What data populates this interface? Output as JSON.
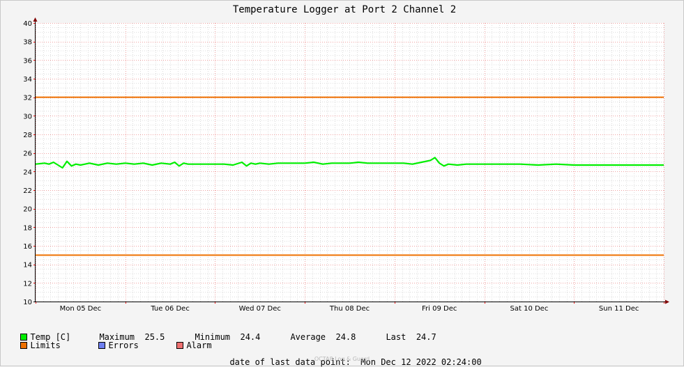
{
  "chart_data": {
    "type": "line",
    "title": "Temperature Logger at Port 2 Channel 2",
    "ylim": [
      10,
      40
    ],
    "y_ticks": [
      10,
      12,
      14,
      16,
      18,
      20,
      22,
      24,
      26,
      28,
      30,
      32,
      34,
      36,
      38,
      40
    ],
    "x_labels": [
      "Mon 05 Dec",
      "Tue 06 Dec",
      "Wed 07 Dec",
      "Thu 08 Dec",
      "Fri 09 Dec",
      "Sat 10 Dec",
      "Sun 11 Dec"
    ],
    "x_days": [
      5,
      12
    ],
    "grid": true,
    "series": [
      {
        "name": "Temp [C]",
        "color": "#00ee00",
        "x": [
          5.0,
          5.1,
          5.15,
          5.2,
          5.25,
          5.3,
          5.35,
          5.4,
          5.45,
          5.5,
          5.55,
          5.6,
          5.7,
          5.8,
          5.9,
          6.0,
          6.1,
          6.2,
          6.3,
          6.4,
          6.5,
          6.55,
          6.6,
          6.65,
          6.7,
          6.8,
          6.9,
          7.0,
          7.1,
          7.2,
          7.3,
          7.35,
          7.4,
          7.45,
          7.5,
          7.6,
          7.7,
          7.8,
          7.9,
          8.0,
          8.1,
          8.15,
          8.2,
          8.3,
          8.4,
          8.5,
          8.6,
          8.7,
          8.8,
          8.9,
          9.0,
          9.1,
          9.2,
          9.3,
          9.4,
          9.45,
          9.5,
          9.55,
          9.6,
          9.7,
          9.8,
          9.9,
          10.0,
          10.2,
          10.4,
          10.6,
          10.8,
          11.0,
          11.2,
          11.4,
          11.6,
          11.8,
          12.0
        ],
        "values": [
          24.8,
          24.9,
          24.8,
          25.0,
          24.7,
          24.4,
          25.1,
          24.6,
          24.8,
          24.7,
          24.8,
          24.9,
          24.7,
          24.9,
          24.8,
          24.9,
          24.8,
          24.9,
          24.7,
          24.9,
          24.8,
          25.0,
          24.6,
          24.9,
          24.8,
          24.8,
          24.8,
          24.8,
          24.8,
          24.7,
          25.0,
          24.6,
          24.9,
          24.8,
          24.9,
          24.8,
          24.9,
          24.9,
          24.9,
          24.9,
          25.0,
          24.9,
          24.8,
          24.9,
          24.9,
          24.9,
          25.0,
          24.9,
          24.9,
          24.9,
          24.9,
          24.9,
          24.8,
          25.0,
          25.2,
          25.5,
          24.9,
          24.6,
          24.8,
          24.7,
          24.8,
          24.8,
          24.8,
          24.8,
          24.8,
          24.7,
          24.8,
          24.7,
          24.7,
          24.7,
          24.7,
          24.7,
          24.7
        ]
      },
      {
        "name": "Limits",
        "color": "#ee7000",
        "values": [
          32,
          15
        ]
      },
      {
        "name": "Errors",
        "color": "#6e7ff0",
        "values": []
      },
      {
        "name": "Alarm",
        "color": "#ee7070",
        "values": []
      }
    ]
  },
  "legend": {
    "temp_label": "Temp [C]",
    "maximum_label": "Maximum",
    "maximum_value": "25.5",
    "minimum_label": "Minimum",
    "minimum_value": "24.4",
    "average_label": "Average",
    "average_value": "24.8",
    "last_label": "Last",
    "last_value": "24.7",
    "limits_label": "Limits",
    "errors_label": "Errors",
    "alarm_label": "Alarm"
  },
  "footer": {
    "date_label": "date of last data point:",
    "date_value": "Mon Dec 12 2022 02:24:00",
    "watermark": "OCTA8 Log & Guard"
  }
}
